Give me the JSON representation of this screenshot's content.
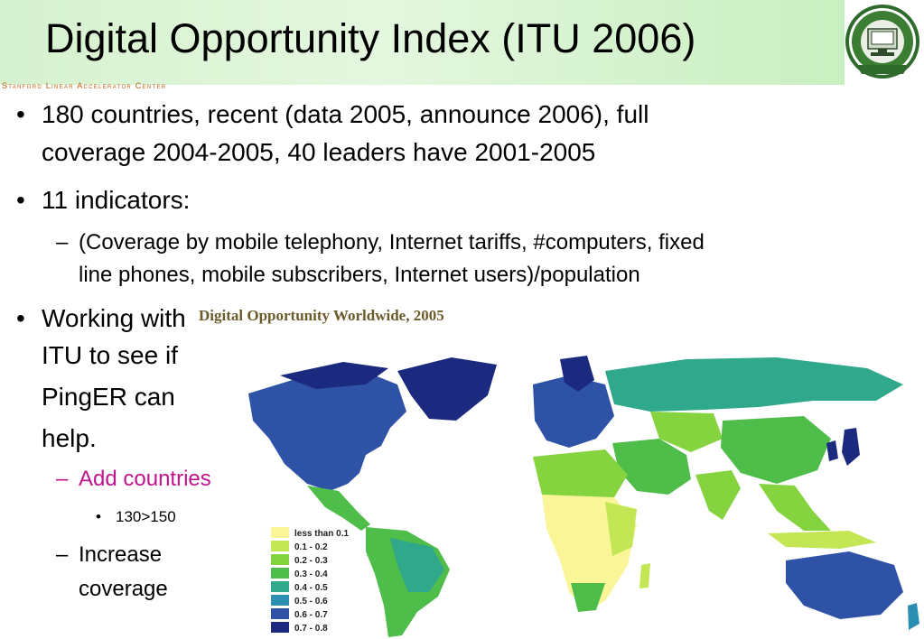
{
  "header": {
    "title": "Digital Opportunity Index (ITU 2006)",
    "caption": "Stanford Linear Accelerator Center",
    "logo_text_top": "NATIONAL UNIVERSITY OF SCIENCES & TECHNOLOGY",
    "logo_text_bottom": "PAKISTAN",
    "logo_inner": "NIIT INSTITUTE OF INFORMATION TECHNOLOGY"
  },
  "bullets": {
    "p1_line1": "180 countries, recent (data 2005, announce 2006), full",
    "p1_line2": "coverage 2004-2005, 40 leaders have 2001-2005",
    "p2": "11 indicators:",
    "p2_sub_line1": "(Coverage by mobile telephony, Internet tariffs, #computers, fixed",
    "p2_sub_line2": "line phones, mobile subscribers, Internet users)/population",
    "p3_lines": [
      "Working with",
      "ITU to see if",
      "PingER can",
      "help."
    ],
    "p3_sub1": "Add countries",
    "p3_sub1_sub": "130>150",
    "p3_sub2_lines": [
      "Increase",
      "coverage"
    ]
  },
  "map": {
    "title": "Digital Opportunity Worldwide, 2005",
    "legend": [
      {
        "label": "less than 0.1",
        "color": "#fbf59a"
      },
      {
        "label": "0.1 - 0.2",
        "color": "#c3e655"
      },
      {
        "label": "0.2 - 0.3",
        "color": "#84d33f"
      },
      {
        "label": "0.3 - 0.4",
        "color": "#4ebd4a"
      },
      {
        "label": "0.4 - 0.5",
        "color": "#2fa88c"
      },
      {
        "label": "0.5 - 0.6",
        "color": "#2a8fb0"
      },
      {
        "label": "0.6 - 0.7",
        "color": "#2e52a5"
      },
      {
        "label": "0.7 - 0.8",
        "color": "#1b2a7e"
      }
    ]
  }
}
